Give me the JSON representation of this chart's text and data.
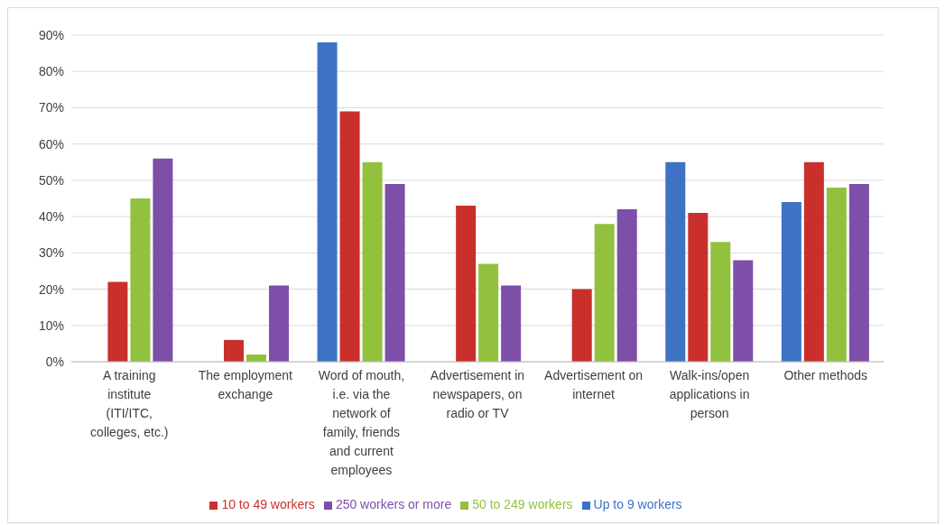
{
  "chart_data": {
    "type": "bar",
    "categories": [
      "A training institute (ITI/ITC, colleges, etc.)",
      "The employment exchange",
      "Word of mouth, i.e. via the network of family, friends and current employees",
      "Advertisement in newspapers, on radio or TV",
      "Advertisement on internet",
      "Walk-ins/open applications in person",
      "Other methods"
    ],
    "series": [
      {
        "name": "Up to 9 workers",
        "color": "#3d72c4",
        "values": [
          0,
          0,
          88,
          0,
          0,
          55,
          44
        ]
      },
      {
        "name": "10 to 49 workers",
        "color": "#c9302c",
        "values": [
          22,
          6,
          69,
          43,
          20,
          41,
          55
        ]
      },
      {
        "name": "50 to 249 workers",
        "color": "#92c13e",
        "values": [
          45,
          2,
          55,
          27,
          38,
          33,
          48
        ]
      },
      {
        "name": "250 workers or more",
        "color": "#7d4fa8",
        "values": [
          56,
          21,
          49,
          21,
          42,
          28,
          49
        ]
      }
    ],
    "ylim": [
      0,
      90
    ],
    "yticks": [
      {
        "value": 0,
        "label": "0%"
      },
      {
        "value": 10,
        "label": "10%"
      },
      {
        "value": 20,
        "label": "20%"
      },
      {
        "value": 30,
        "label": "30%"
      },
      {
        "value": 40,
        "label": "40%"
      },
      {
        "value": 50,
        "label": "50%"
      },
      {
        "value": 60,
        "label": "60%"
      },
      {
        "value": 70,
        "label": "70%"
      },
      {
        "value": 80,
        "label": "80%"
      },
      {
        "value": 90,
        "label": "90%"
      }
    ],
    "grid": "y",
    "legend": "bottom"
  }
}
